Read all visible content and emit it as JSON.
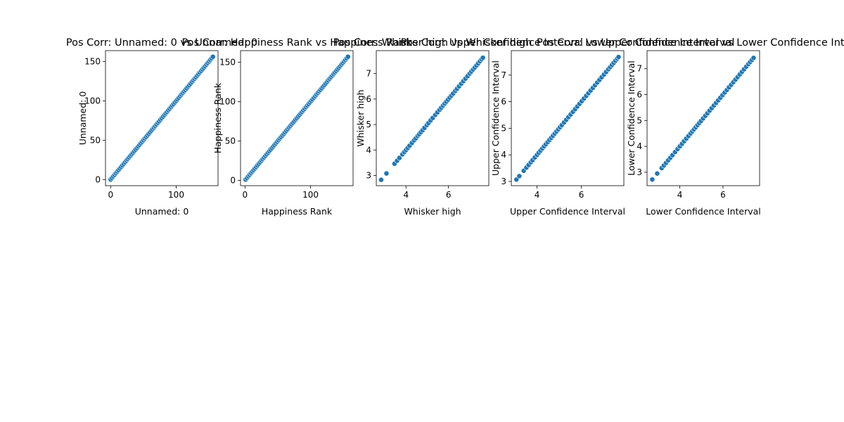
{
  "chart_data": [
    {
      "type": "scatter",
      "title": "Pos Corr: Unnamed: 0 vs Unnamed: 0",
      "xlabel": "Unnamed: 0",
      "ylabel": "Unnamed: 0",
      "xlim": [
        -7.8,
        163.8
      ],
      "ylim": [
        -7.8,
        163.8
      ],
      "xticks": [
        0,
        100
      ],
      "yticks": [
        0,
        50,
        100,
        150
      ],
      "x": [
        0,
        2,
        4,
        6,
        8,
        10,
        12,
        14,
        16,
        18,
        20,
        22,
        24,
        26,
        28,
        30,
        32,
        34,
        36,
        38,
        40,
        42,
        44,
        46,
        48,
        50,
        52,
        54,
        56,
        58,
        60,
        62,
        64,
        66,
        68,
        70,
        72,
        74,
        76,
        78,
        80,
        82,
        84,
        86,
        88,
        90,
        92,
        94,
        96,
        98,
        100,
        102,
        104,
        106,
        108,
        110,
        112,
        114,
        116,
        118,
        120,
        122,
        124,
        126,
        128,
        130,
        132,
        134,
        136,
        138,
        140,
        142,
        144,
        146,
        148,
        150,
        152,
        154,
        156
      ],
      "y": [
        0,
        2,
        4,
        6,
        8,
        10,
        12,
        14,
        16,
        18,
        20,
        22,
        24,
        26,
        28,
        30,
        32,
        34,
        36,
        38,
        40,
        42,
        44,
        46,
        48,
        50,
        52,
        54,
        56,
        58,
        60,
        62,
        64,
        66,
        68,
        70,
        72,
        74,
        76,
        78,
        80,
        82,
        84,
        86,
        88,
        90,
        92,
        94,
        96,
        98,
        100,
        102,
        104,
        106,
        108,
        110,
        112,
        114,
        116,
        118,
        120,
        122,
        124,
        126,
        128,
        130,
        132,
        134,
        136,
        138,
        140,
        142,
        144,
        146,
        148,
        150,
        152,
        154,
        156
      ],
      "grid": false,
      "color": "#1f77b4"
    },
    {
      "type": "scatter",
      "title": "Pos Corr: Happiness Rank vs Happiness Rank",
      "xlabel": "Happiness Rank",
      "ylabel": "Happiness Rank",
      "xlim": [
        -6.8,
        164.8
      ],
      "ylim": [
        -6.8,
        164.8
      ],
      "xticks": [
        0,
        100
      ],
      "yticks": [
        0,
        50,
        100,
        150
      ],
      "x": [
        1,
        3,
        5,
        7,
        9,
        11,
        13,
        15,
        17,
        19,
        21,
        23,
        25,
        27,
        29,
        31,
        33,
        35,
        37,
        39,
        41,
        43,
        45,
        47,
        49,
        51,
        53,
        55,
        57,
        59,
        61,
        63,
        65,
        67,
        69,
        71,
        73,
        75,
        77,
        79,
        81,
        83,
        85,
        87,
        89,
        91,
        93,
        95,
        97,
        99,
        101,
        103,
        105,
        107,
        109,
        111,
        113,
        115,
        117,
        119,
        121,
        123,
        125,
        127,
        129,
        131,
        133,
        135,
        137,
        139,
        141,
        143,
        145,
        147,
        149,
        151,
        153,
        155,
        157
      ],
      "y": [
        1,
        3,
        5,
        7,
        9,
        11,
        13,
        15,
        17,
        19,
        21,
        23,
        25,
        27,
        29,
        31,
        33,
        35,
        37,
        39,
        41,
        43,
        45,
        47,
        49,
        51,
        53,
        55,
        57,
        59,
        61,
        63,
        65,
        67,
        69,
        71,
        73,
        75,
        77,
        79,
        81,
        83,
        85,
        87,
        89,
        91,
        93,
        95,
        97,
        99,
        101,
        103,
        105,
        107,
        109,
        111,
        113,
        115,
        117,
        119,
        121,
        123,
        125,
        127,
        129,
        131,
        133,
        135,
        137,
        139,
        141,
        143,
        145,
        147,
        149,
        151,
        153,
        155,
        157
      ],
      "grid": false,
      "color": "#1f77b4"
    },
    {
      "type": "scatter",
      "title": "Pos Corr: Whisker high vs Whisker high",
      "xlabel": "Whisker high",
      "ylabel": "Whisker high",
      "xlim": [
        2.6,
        7.9
      ],
      "ylim": [
        2.6,
        7.9
      ],
      "xticks": [
        4,
        6
      ],
      "yticks": [
        3,
        4,
        5,
        6,
        7
      ],
      "x": [
        2.83,
        3.08,
        3.46,
        3.58,
        3.69,
        3.83,
        3.92,
        4.0,
        4.08,
        4.17,
        4.28,
        4.38,
        4.46,
        4.55,
        4.62,
        4.7,
        4.78,
        4.87,
        4.98,
        5.06,
        5.16,
        5.26,
        5.38,
        5.48,
        5.58,
        5.66,
        5.74,
        5.82,
        5.9,
        5.98,
        6.06,
        6.14,
        6.22,
        6.32,
        6.4,
        6.5,
        6.6,
        6.7,
        6.8,
        6.9,
        7.0,
        7.08,
        7.16,
        7.24,
        7.32,
        7.4,
        7.48,
        7.56,
        7.62
      ],
      "y": [
        2.83,
        3.08,
        3.46,
        3.58,
        3.69,
        3.83,
        3.92,
        4.0,
        4.08,
        4.17,
        4.28,
        4.38,
        4.46,
        4.55,
        4.62,
        4.7,
        4.78,
        4.87,
        4.98,
        5.06,
        5.16,
        5.26,
        5.38,
        5.48,
        5.58,
        5.66,
        5.74,
        5.82,
        5.9,
        5.98,
        6.06,
        6.14,
        6.22,
        6.32,
        6.4,
        6.5,
        6.6,
        6.7,
        6.8,
        6.9,
        7.0,
        7.08,
        7.16,
        7.24,
        7.32,
        7.4,
        7.48,
        7.56,
        7.62
      ],
      "grid": false,
      "color": "#1f77b4"
    },
    {
      "type": "scatter",
      "title": "Pos Corr: Upper Confidence Interval vs Upper Confidence Interval",
      "xlabel": "Upper Confidence Interval",
      "ylabel": "Upper Confidence Interval",
      "xlim": [
        2.84,
        7.92
      ],
      "ylim": [
        2.84,
        7.92
      ],
      "xticks": [
        4,
        6
      ],
      "yticks": [
        3,
        4,
        5,
        6,
        7
      ],
      "x": [
        3.07,
        3.2,
        3.4,
        3.52,
        3.62,
        3.72,
        3.8,
        3.9,
        4.0,
        4.08,
        4.16,
        4.24,
        4.32,
        4.4,
        4.48,
        4.56,
        4.64,
        4.72,
        4.8,
        4.88,
        4.96,
        5.04,
        5.12,
        5.22,
        5.32,
        5.42,
        5.52,
        5.62,
        5.72,
        5.82,
        5.92,
        6.02,
        6.12,
        6.22,
        6.32,
        6.42,
        6.52,
        6.62,
        6.72,
        6.82,
        6.92,
        7.02,
        7.12,
        7.22,
        7.3,
        7.38,
        7.46,
        7.54,
        7.62,
        7.68
      ],
      "y": [
        3.07,
        3.2,
        3.4,
        3.52,
        3.62,
        3.72,
        3.8,
        3.9,
        4.0,
        4.08,
        4.16,
        4.24,
        4.32,
        4.4,
        4.48,
        4.56,
        4.64,
        4.72,
        4.8,
        4.88,
        4.96,
        5.04,
        5.12,
        5.22,
        5.32,
        5.42,
        5.52,
        5.62,
        5.72,
        5.82,
        5.92,
        6.02,
        6.12,
        6.22,
        6.32,
        6.42,
        6.52,
        6.62,
        6.72,
        6.82,
        6.92,
        7.02,
        7.12,
        7.22,
        7.3,
        7.38,
        7.46,
        7.54,
        7.62,
        7.68
      ],
      "grid": false,
      "color": "#1f77b4"
    },
    {
      "type": "scatter",
      "title": "Pos Corr: Lower Confidence Interval vs Lower Confidence Interval",
      "xlabel": "Lower Confidence Interval",
      "ylabel": "Lower Confidence Interval",
      "xlim": [
        2.48,
        7.7
      ],
      "ylim": [
        2.48,
        7.7
      ],
      "xticks": [
        4,
        6
      ],
      "yticks": [
        3,
        4,
        5,
        6,
        7
      ],
      "x": [
        2.72,
        2.95,
        3.16,
        3.26,
        3.36,
        3.46,
        3.56,
        3.66,
        3.78,
        3.9,
        4.0,
        4.1,
        4.2,
        4.3,
        4.4,
        4.5,
        4.58,
        4.66,
        4.74,
        4.82,
        4.9,
        4.98,
        5.08,
        5.18,
        5.28,
        5.38,
        5.48,
        5.58,
        5.68,
        5.78,
        5.88,
        5.98,
        6.08,
        6.18,
        6.28,
        6.38,
        6.48,
        6.58,
        6.68,
        6.78,
        6.88,
        6.98,
        7.08,
        7.18,
        7.26,
        7.34,
        7.42
      ],
      "y": [
        2.72,
        2.95,
        3.16,
        3.26,
        3.36,
        3.46,
        3.56,
        3.66,
        3.78,
        3.9,
        4.0,
        4.1,
        4.2,
        4.3,
        4.4,
        4.5,
        4.58,
        4.66,
        4.74,
        4.82,
        4.9,
        4.98,
        5.08,
        5.18,
        5.28,
        5.38,
        5.48,
        5.58,
        5.68,
        5.78,
        5.88,
        5.98,
        6.08,
        6.18,
        6.28,
        6.38,
        6.48,
        6.58,
        6.68,
        6.78,
        6.88,
        6.98,
        7.08,
        7.18,
        7.26,
        7.34,
        7.42
      ],
      "grid": false,
      "color": "#1f77b4"
    }
  ]
}
